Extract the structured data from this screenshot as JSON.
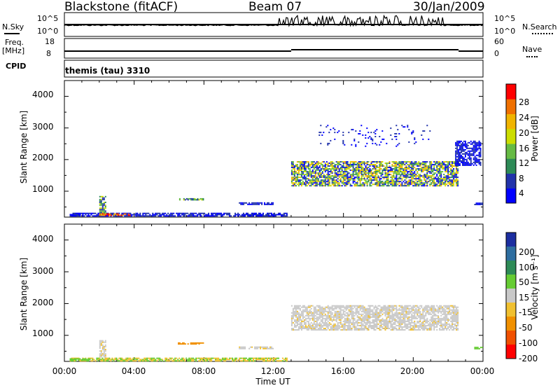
{
  "header": {
    "station": "Blackstone (fitACF)",
    "beam": "Beam 07",
    "date": "30/Jan/2009"
  },
  "top_panels": {
    "nsky_label": "N.Sky",
    "nsky_ticks": [
      "10^5",
      "10^0"
    ],
    "nsearch_label": "N.Search",
    "nsearch_ticks": [
      "10^5",
      "10^0"
    ],
    "freq_label_1": "Freq.",
    "freq_label_2": "[MHz]",
    "freq_ticks": [
      "18",
      "8"
    ],
    "nave_label": "Nave",
    "nave_ticks": [
      "60",
      "0"
    ],
    "cpid_label": "CPID",
    "cpid_value": "themis (tau) 3310"
  },
  "colors": {
    "power_scale": [
      "#0000ff",
      "#2233aa",
      "#2e8b57",
      "#66bb44",
      "#ccdd00",
      "#f0b400",
      "#f07000",
      "#ff0000"
    ],
    "velocity_scale": [
      "#1c2ea0",
      "#2e6ea0",
      "#2e8b57",
      "#66cc33",
      "#c8c8c8",
      "#f0c030",
      "#f09000",
      "#f05000",
      "#ff0000"
    ]
  },
  "chart_data": [
    {
      "type": "heatmap",
      "name": "power",
      "ylabel": "Slant Range [km]",
      "yticks": [
        "4000",
        "3000",
        "2000",
        "1000"
      ],
      "ylim": [
        180,
        4500
      ],
      "xticks": [],
      "xlim": [
        0,
        24
      ],
      "colorbar": {
        "label": "Power [dB]",
        "ticks": [
          "28",
          "24",
          "20",
          "16",
          "12",
          "8",
          "4"
        ],
        "range": [
          0,
          30
        ]
      },
      "regions": [
        {
          "x0": 13.0,
          "x1": 22.6,
          "y0": 1150,
          "y1": 1950,
          "level": "mixed-high"
        },
        {
          "x0": 0.3,
          "x1": 12.8,
          "y0": 200,
          "y1": 320,
          "level": "low"
        },
        {
          "x0": 2.0,
          "x1": 3.8,
          "y0": 220,
          "y1": 300,
          "level": "high"
        },
        {
          "x0": 2.0,
          "x1": 2.4,
          "y0": 300,
          "y1": 850,
          "level": "mid"
        },
        {
          "x0": 6.5,
          "x1": 8.0,
          "y0": 720,
          "y1": 780,
          "level": "mid"
        },
        {
          "x0": 10.0,
          "x1": 12.0,
          "y0": 560,
          "y1": 650,
          "level": "low"
        },
        {
          "x0": 23.5,
          "x1": 24.0,
          "y0": 560,
          "y1": 640,
          "level": "low"
        },
        {
          "x0": 22.4,
          "x1": 23.9,
          "y0": 1800,
          "y1": 2600,
          "level": "low"
        },
        {
          "x0": 14.5,
          "x1": 21.0,
          "y0": 2400,
          "y1": 3100,
          "level": "sparse"
        }
      ]
    },
    {
      "type": "heatmap",
      "name": "velocity",
      "ylabel": "Slant Range [km]",
      "yticks": [
        "4000",
        "3000",
        "2000",
        "1000"
      ],
      "ylim": [
        180,
        4500
      ],
      "xticks": [
        "00:00",
        "04:00",
        "08:00",
        "12:00",
        "16:00",
        "20:00",
        "00:00"
      ],
      "xlim": [
        0,
        24
      ],
      "xlabel": "Time UT",
      "colorbar": {
        "label": "Velocity [m s⁻¹]",
        "ticks": [
          "200",
          "100",
          "50",
          "15",
          "-15",
          "-50",
          "-100",
          "-200"
        ]
      },
      "regions": [
        {
          "x0": 13.0,
          "x1": 22.6,
          "y0": 1150,
          "y1": 1950,
          "level": "near-zero"
        },
        {
          "x0": 0.3,
          "x1": 12.8,
          "y0": 180,
          "y1": 300,
          "level": "slow-negative"
        },
        {
          "x0": 0.3,
          "x1": 1.5,
          "y0": 200,
          "y1": 280,
          "level": "slow-positive"
        },
        {
          "x0": 2.0,
          "x1": 2.4,
          "y0": 300,
          "y1": 850,
          "level": "near-zero"
        },
        {
          "x0": 6.5,
          "x1": 8.0,
          "y0": 720,
          "y1": 780,
          "level": "negative"
        },
        {
          "x0": 10.0,
          "x1": 12.0,
          "y0": 560,
          "y1": 650,
          "level": "near-zero"
        },
        {
          "x0": 23.5,
          "x1": 24.0,
          "y0": 560,
          "y1": 640,
          "level": "slow-positive"
        }
      ]
    }
  ]
}
